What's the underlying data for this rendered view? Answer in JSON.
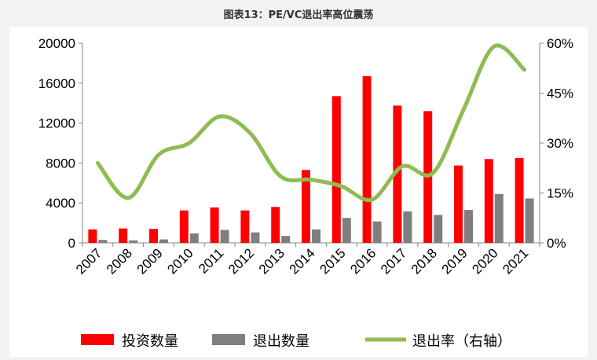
{
  "title": "图表13：PE/VC退出率高位震荡",
  "colors": {
    "invest": "#ff0000",
    "exit": "#7f7f7f",
    "rate": "#8fbc52",
    "background": "#f2f2f2",
    "panel": "#ffffff"
  },
  "chart_data": {
    "type": "bar",
    "categories": [
      "2007",
      "2008",
      "2009",
      "2010",
      "2011",
      "2012",
      "2013",
      "2014",
      "2015",
      "2016",
      "2017",
      "2018",
      "2019",
      "2020",
      "2021"
    ],
    "series": [
      {
        "name": "投资数量",
        "kind": "bar",
        "axis": "left",
        "values": [
          1350,
          1450,
          1400,
          3250,
          3550,
          3250,
          3600,
          7300,
          14700,
          16700,
          13750,
          13200,
          7750,
          8400,
          8500
        ]
      },
      {
        "name": "退出数量",
        "kind": "bar",
        "axis": "left",
        "values": [
          300,
          250,
          350,
          950,
          1300,
          1050,
          700,
          1350,
          2500,
          2150,
          3150,
          2800,
          3300,
          4900,
          4450
        ]
      },
      {
        "name": "退出率（右轴）",
        "kind": "line",
        "axis": "right",
        "values": [
          24.0,
          13.5,
          26.5,
          30.0,
          38.0,
          33.0,
          20.0,
          19.0,
          17.0,
          13.0,
          23.0,
          21.0,
          40.0,
          59.0,
          52.0
        ]
      }
    ],
    "yticks_left": [
      "0",
      "4000",
      "8000",
      "12000",
      "16000",
      "20000"
    ],
    "yticks_right": [
      "0%",
      "15%",
      "30%",
      "45%",
      "60%"
    ],
    "ylim_left": [
      0,
      20000
    ],
    "ylim_right": [
      0,
      60
    ],
    "grid": false,
    "legend_position": "bottom"
  }
}
